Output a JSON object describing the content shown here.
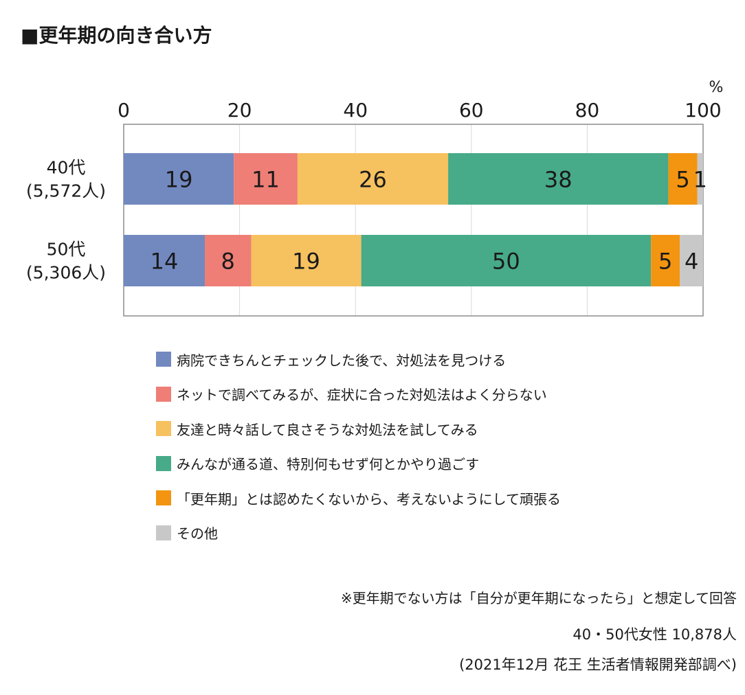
{
  "title": "■更年期の向き合い方",
  "chart_data": {
    "type": "bar",
    "orientation": "horizontal",
    "stacked": true,
    "unit_label": "%",
    "xlim": [
      0,
      100
    ],
    "x_ticks": [
      0,
      20,
      40,
      60,
      80,
      100
    ],
    "categories": [
      {
        "line1": "40代",
        "line2": "(5,572人)"
      },
      {
        "line1": "50代",
        "line2": "(5,306人)"
      }
    ],
    "series": [
      {
        "name": "病院できちんとチェックした後で、対処法を見つける",
        "color": "#7289c0",
        "values": [
          19,
          14
        ]
      },
      {
        "name": "ネットで調べてみるが、症状に合った対処法はよく分らない",
        "color": "#ee7e76",
        "values": [
          11,
          8
        ]
      },
      {
        "name": "友達と時々話して良さそうな対処法を試してみる",
        "color": "#f6c15f",
        "values": [
          26,
          19
        ]
      },
      {
        "name": "みんなが通る道、特別何もせず何とかやり過ごす",
        "color": "#47aa88",
        "values": [
          38,
          50
        ]
      },
      {
        "name": "「更年期」とは認めたくないから、考えないようにして頑張る",
        "color": "#f39511",
        "values": [
          5,
          5
        ]
      },
      {
        "name": "その他",
        "color": "#c8c8c8",
        "values": [
          1,
          4
        ]
      }
    ],
    "data_labels": [
      [
        "19",
        "11",
        "26",
        "38",
        "5",
        "1"
      ],
      [
        "14",
        "8",
        "19",
        "50",
        "5",
        "4"
      ]
    ],
    "grid": true,
    "legend_position": "bottom"
  },
  "notes": {
    "assumption": "※更年期でない方は「自分が更年期になったら」と想定して回答",
    "sample": "40・50代女性 10,878人",
    "source": "(2021年12月 花王 生活者情報開発部調べ)"
  }
}
